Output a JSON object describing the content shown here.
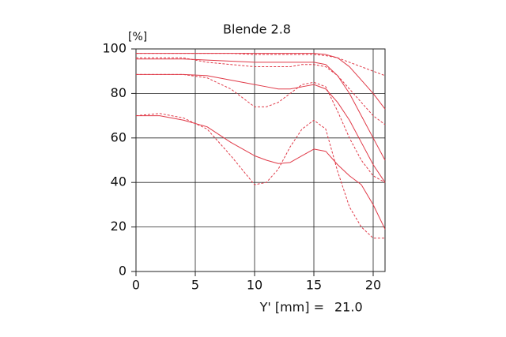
{
  "chart_data": {
    "type": "line",
    "title": "Blende 2.8",
    "y_label": "[%]",
    "x_label": "Y' [mm] =",
    "annotation": "21.0",
    "x": [
      0,
      2,
      4,
      6,
      8,
      10,
      11,
      12,
      13,
      14,
      15,
      16,
      17,
      18,
      19,
      20,
      21
    ],
    "series": [
      {
        "color": "#e03a48",
        "dashed": false,
        "values": [
          98,
          98,
          98,
          98,
          98,
          98,
          98,
          98,
          98,
          98,
          98,
          97.5,
          96,
          92,
          86,
          80,
          73
        ]
      },
      {
        "color": "#e03a48",
        "dashed": false,
        "values": [
          95.5,
          95.5,
          95.5,
          95,
          94.5,
          94,
          94,
          94,
          94,
          94,
          94,
          93,
          88,
          80,
          70,
          60,
          50
        ]
      },
      {
        "color": "#e03a48",
        "dashed": false,
        "values": [
          88.5,
          88.5,
          88.5,
          88,
          86,
          84,
          83,
          82,
          82,
          83,
          84,
          82,
          76,
          68,
          58,
          48,
          40
        ]
      },
      {
        "color": "#e03a48",
        "dashed": false,
        "values": [
          70,
          70,
          68,
          65,
          58,
          52,
          50,
          48.5,
          49,
          52,
          55,
          54,
          48,
          43,
          39,
          30,
          19
        ]
      },
      {
        "color": "#e03a48",
        "dashed": true,
        "values": [
          98,
          98,
          98,
          98,
          98,
          97.5,
          97.5,
          97.5,
          97.5,
          97.5,
          97.5,
          97,
          96,
          94,
          92,
          90,
          88
        ]
      },
      {
        "color": "#e03a48",
        "dashed": true,
        "values": [
          96,
          96,
          96,
          94,
          93,
          92,
          92,
          92,
          92,
          93,
          93,
          92,
          88,
          82,
          76,
          70,
          66
        ]
      },
      {
        "color": "#e03a48",
        "dashed": true,
        "values": [
          88.5,
          88.5,
          88.5,
          87,
          82,
          74,
          74,
          76,
          80,
          84,
          85,
          83,
          72,
          60,
          50,
          43,
          40
        ]
      },
      {
        "color": "#e03a48",
        "dashed": true,
        "values": [
          70,
          71,
          69,
          64,
          52,
          39,
          40,
          46,
          56,
          64,
          68,
          64,
          45,
          29,
          20,
          15,
          15
        ]
      }
    ],
    "xlim": [
      0,
      21
    ],
    "xticks": [
      0,
      5,
      10,
      15,
      20
    ],
    "ylim": [
      0,
      100
    ],
    "yticks": [
      0,
      20,
      40,
      60,
      80,
      100
    ],
    "grid": true
  }
}
